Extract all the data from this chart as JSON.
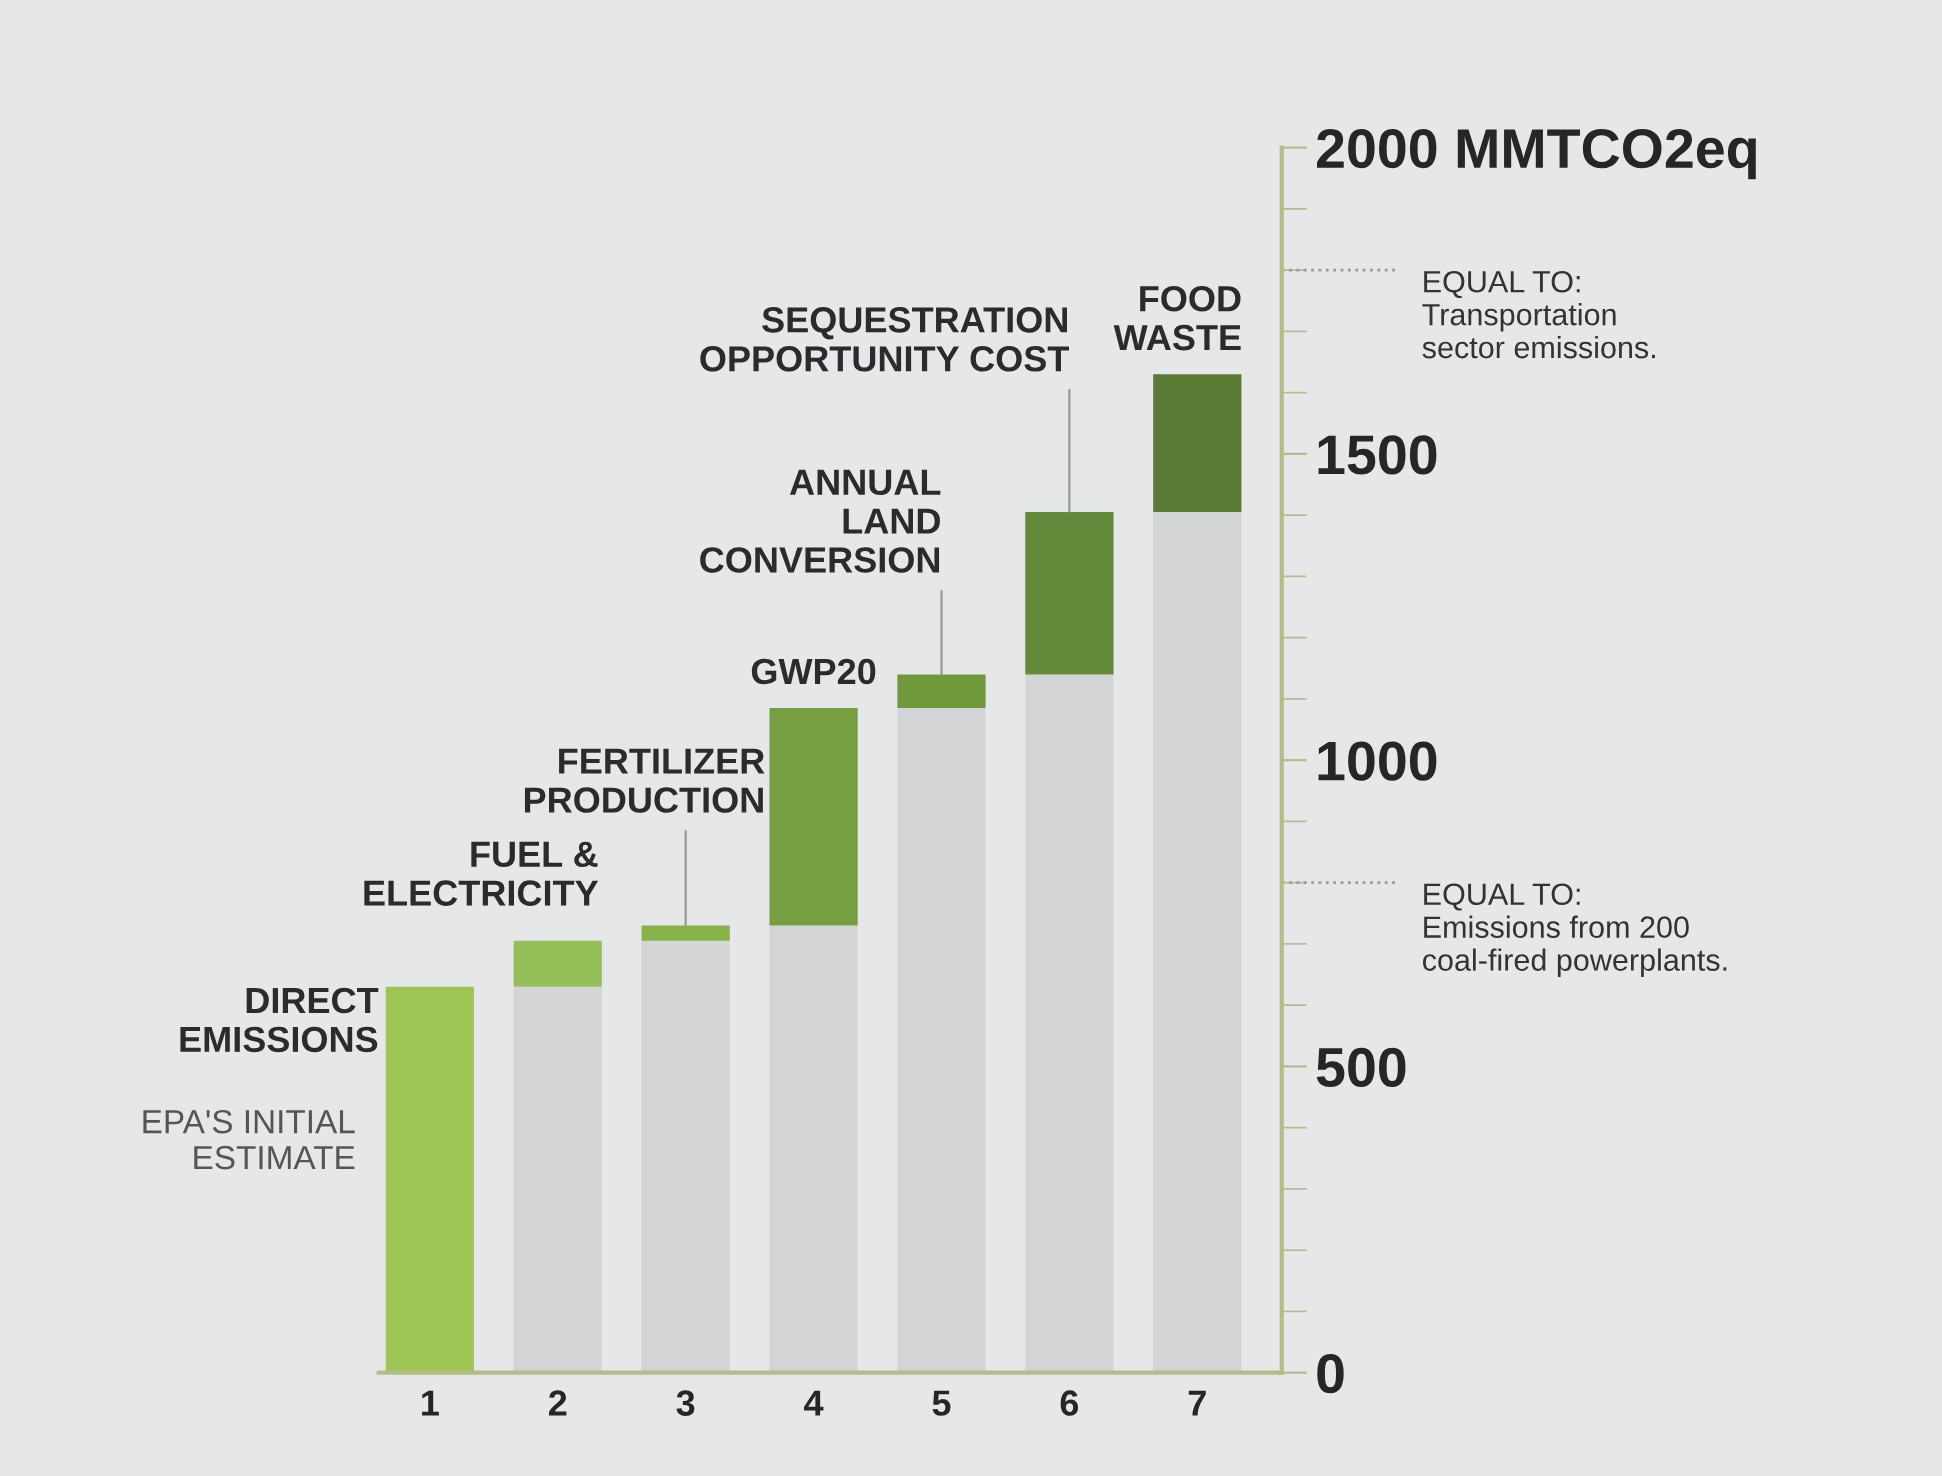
{
  "chart_data": {
    "type": "bar",
    "stacked": true,
    "categories": [
      "1",
      "2",
      "3",
      "4",
      "5",
      "6",
      "7"
    ],
    "series": [
      {
        "color": "#d3d4d6",
        "values": [
          null,
          630,
          705,
          730,
          1085,
          1140,
          1405
        ]
      },
      {
        "colors": [
          "#9cc554",
          "#94c05a",
          "#86b24a",
          "#76a040",
          "#6f9a3c",
          "#63893a",
          "#587a33"
        ],
        "values": [
          630,
          75,
          25,
          355,
          55,
          265,
          225
        ]
      }
    ],
    "ylim": [
      0,
      2000
    ],
    "yticks": [
      0,
      500,
      1000,
      1500,
      {
        "value": 2000,
        "label": "2000 MMTCO2eq"
      }
    ],
    "grid": false,
    "ref_lines": [
      {
        "axis": "y",
        "value": 1800,
        "label": "EQUAL TO:\nTransportation\nsector emissions.",
        "line_style": "dotted",
        "color": "#9a9a9a"
      },
      {
        "axis": "y",
        "value": 800,
        "label": "EQUAL TO:\nEmissions from 200\ncoal-fired powerplants.",
        "line_style": "dotted",
        "color": "#9a9a9a"
      }
    ],
    "annotations": [
      {
        "text": "DIRECT\nEMISSIONS",
        "x": "1",
        "y": 630
      },
      "EPA'S INITIAL\nESTIMATE",
      {
        "text": "FUEL &\nELECTRICITY",
        "x": "2",
        "y": 705
      },
      {
        "text": "FERTILIZER\nPRODUCTION",
        "x": "3",
        "y": 730
      },
      {
        "text": "GWP20",
        "x": "4",
        "y": 1085
      },
      {
        "text": "ANNUAL\nLAND\nCONVERSION",
        "x": "5",
        "y": 1140
      },
      {
        "text": "SEQUESTRATION\nOPPORTUNITY COST",
        "x": "6",
        "y": 1405
      },
      {
        "text": "FOOD\nWASTE",
        "x": "7",
        "y": 1630
      }
    ]
  }
}
